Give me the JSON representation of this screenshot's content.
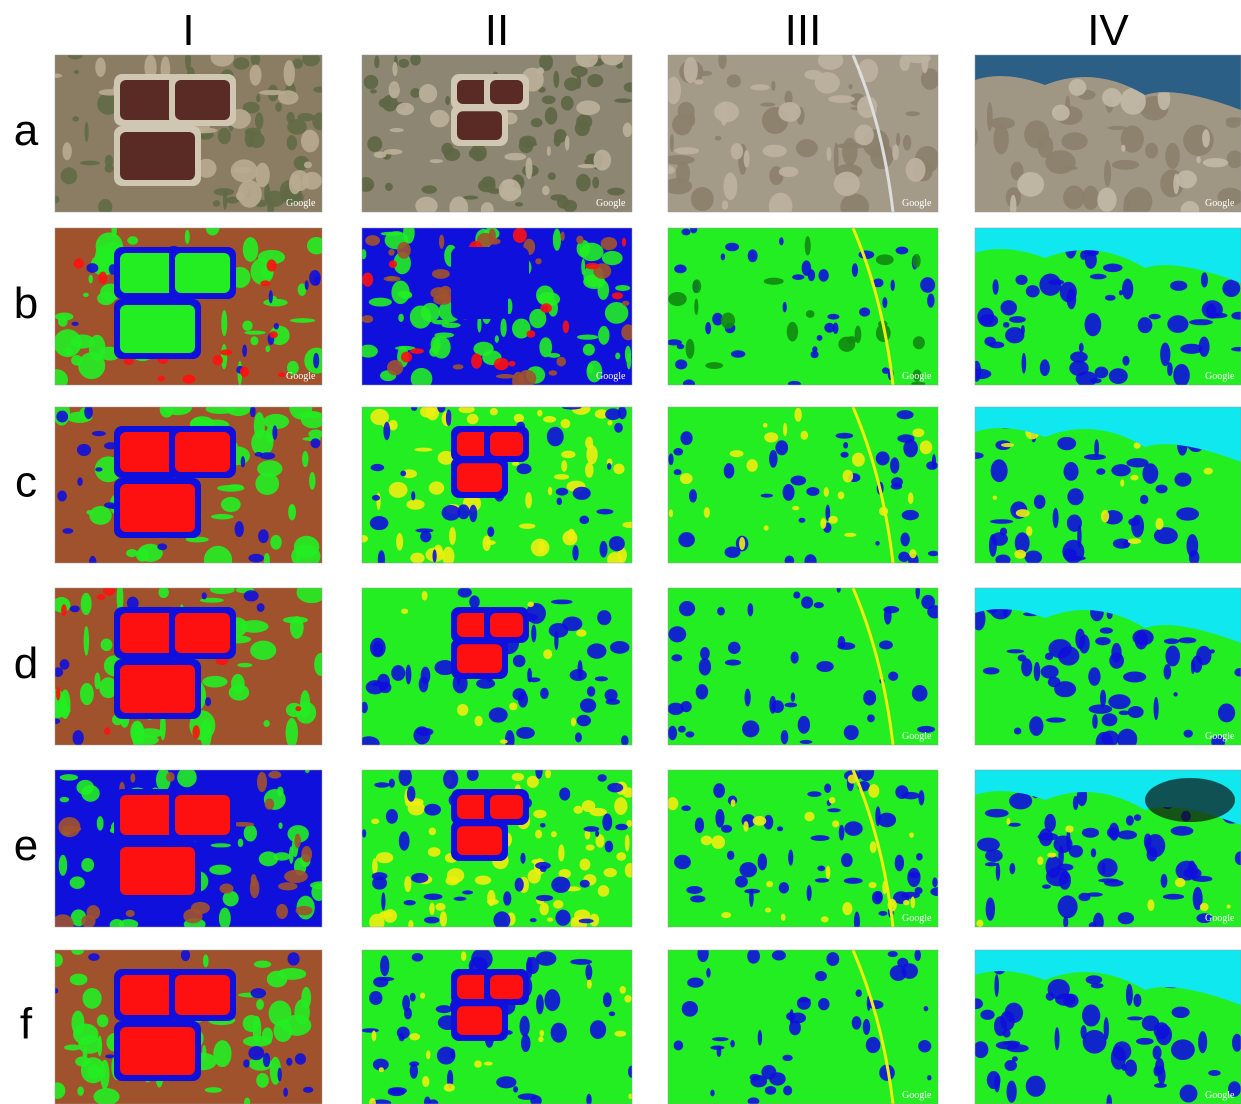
{
  "columns": [
    "I",
    "II",
    "III",
    "IV"
  ],
  "rows": [
    "a",
    "b",
    "c",
    "d",
    "e",
    "f"
  ],
  "watermark": "Google"
}
